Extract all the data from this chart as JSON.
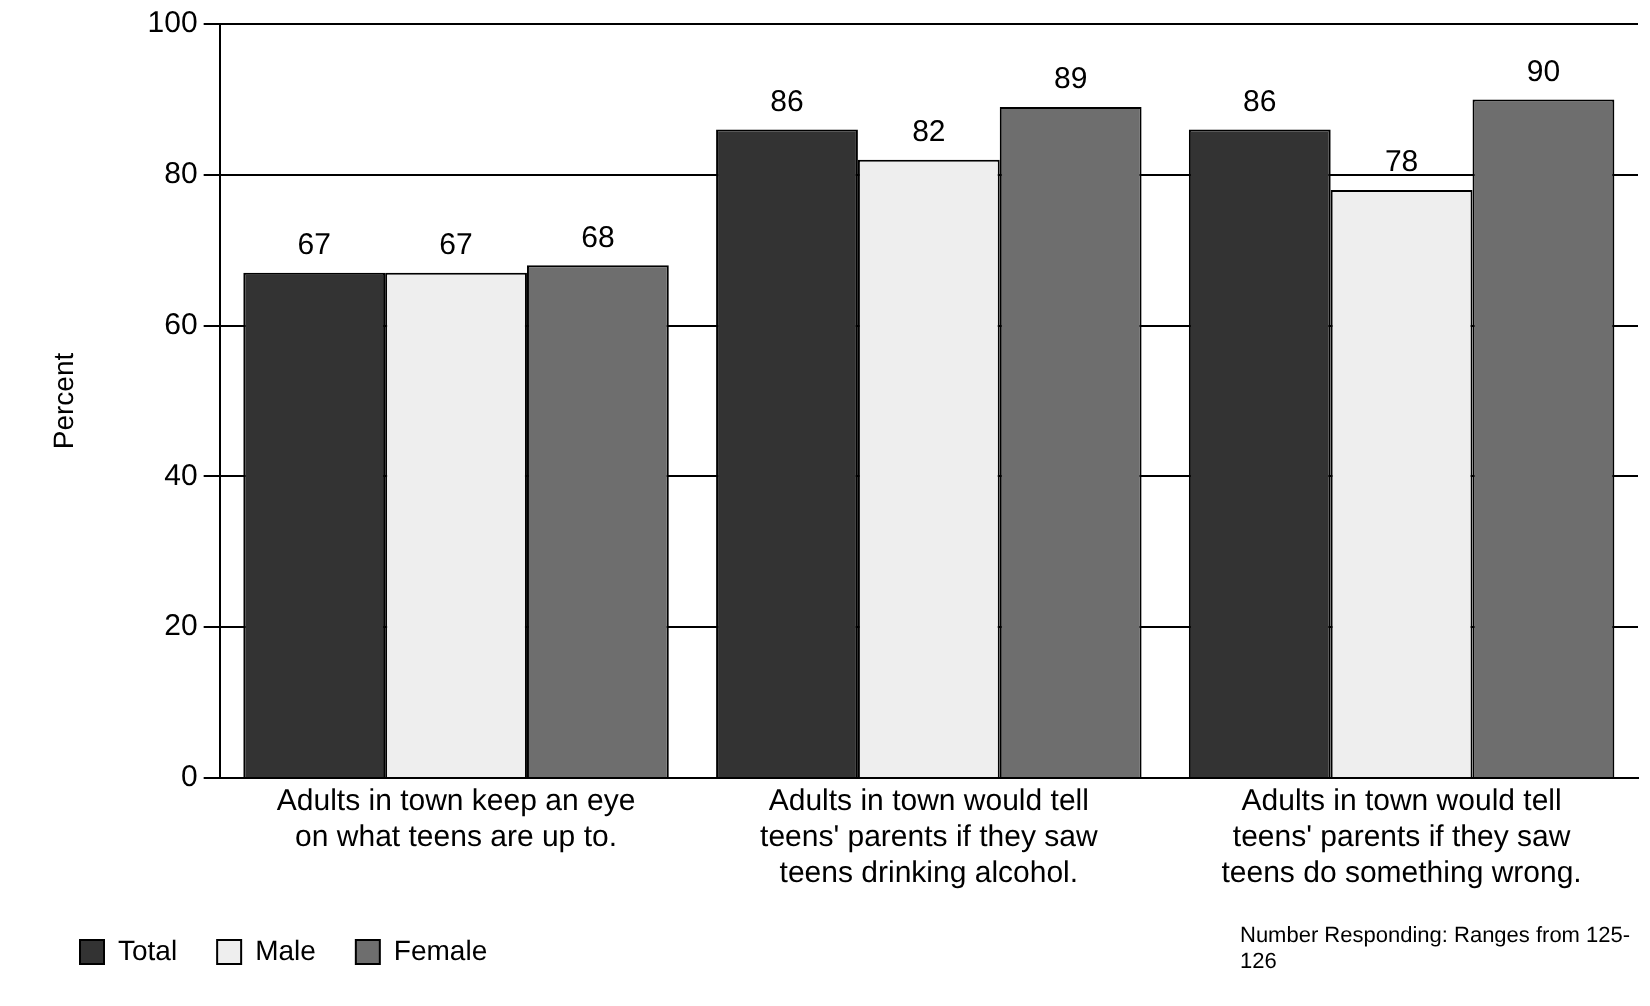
{
  "chart_data": {
    "type": "bar",
    "ylabel": "Percent",
    "categories": [
      "Adults in town keep an eye on what teens are up to.",
      "Adults in town would tell teens' parents if they saw teens drinking alcohol.",
      "Adults in town would tell teens' parents if they saw teens do something wrong."
    ],
    "series": [
      {
        "name": "Total",
        "color": "#333333",
        "values": [
          67,
          86,
          86
        ]
      },
      {
        "name": "Male",
        "color": "#eeeeee",
        "values": [
          67,
          82,
          78
        ]
      },
      {
        "name": "Female",
        "color": "#6e6e6e",
        "values": [
          68,
          89,
          90
        ]
      }
    ],
    "ylim": [
      0,
      100
    ],
    "yticks": [
      0,
      20,
      40,
      60,
      80,
      100
    ],
    "grid": "y",
    "legend": "bottom left",
    "data_labels": true,
    "annotations": [
      "Number Responding: Ranges from 125-126"
    ]
  }
}
